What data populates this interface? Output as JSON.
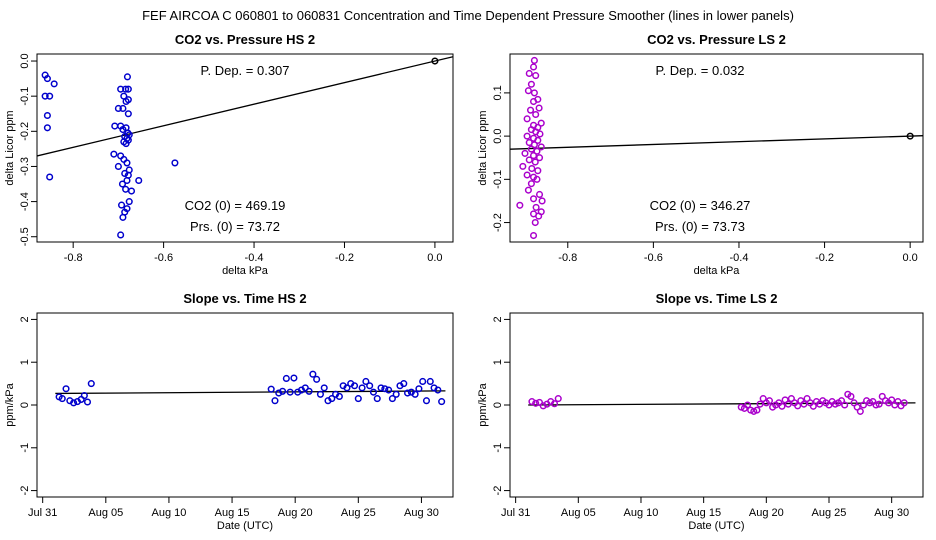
{
  "figure": {
    "title": "FEF   AIRCOA C   060801 to 060831   Concentration and Time Dependent Pressure Smoother (lines in lower panels)"
  },
  "chart_data": [
    {
      "id": "hs-co2-pressure",
      "type": "scatter",
      "title": "CO2 vs. Pressure HS 2",
      "xlabel": "delta kPa",
      "ylabel": "delta Licor ppm",
      "xlim": [
        -0.88,
        0.04
      ],
      "ylim": [
        -0.515,
        0.02
      ],
      "xticks": [
        -0.8,
        -0.6,
        -0.4,
        -0.2,
        0.0
      ],
      "xtick_labels": [
        "-0.8",
        "-0.6",
        "-0.4",
        "-0.2",
        "0.0"
      ],
      "yticks": [
        -0.5,
        -0.4,
        -0.3,
        -0.2,
        -0.1,
        0.0
      ],
      "ytick_labels": [
        "-0.5",
        "-0.4",
        "-0.3",
        "-0.2",
        "-0.1",
        "0.0"
      ],
      "point_color": "#0000cc",
      "annotations": {
        "pdep": "P. Dep. =  0.307",
        "co2": "CO2 (0) =  469.19",
        "prs": "Prs. (0) = 73.72"
      },
      "fit_line": {
        "x": [
          -0.88,
          0.04
        ],
        "y": [
          -0.2702,
          0.0123
        ]
      },
      "reference_point": {
        "x": 0.0,
        "y": 0.0
      },
      "points": [
        [
          -0.862,
          -0.04
        ],
        [
          -0.857,
          -0.05
        ],
        [
          -0.862,
          -0.1
        ],
        [
          -0.852,
          -0.1
        ],
        [
          -0.842,
          -0.065
        ],
        [
          -0.857,
          -0.155
        ],
        [
          -0.857,
          -0.19
        ],
        [
          -0.852,
          -0.33
        ],
        [
          -0.575,
          -0.29
        ],
        [
          -0.68,
          -0.045
        ],
        [
          -0.695,
          -0.08
        ],
        [
          -0.684,
          -0.08
        ],
        [
          -0.678,
          -0.08
        ],
        [
          -0.688,
          -0.1
        ],
        [
          -0.678,
          -0.11
        ],
        [
          -0.683,
          -0.115
        ],
        [
          -0.69,
          -0.135
        ],
        [
          -0.7,
          -0.135
        ],
        [
          -0.678,
          -0.15
        ],
        [
          -0.708,
          -0.185
        ],
        [
          -0.695,
          -0.185
        ],
        [
          -0.683,
          -0.19
        ],
        [
          -0.69,
          -0.195
        ],
        [
          -0.679,
          -0.205
        ],
        [
          -0.676,
          -0.21
        ],
        [
          -0.686,
          -0.215
        ],
        [
          -0.681,
          -0.22
        ],
        [
          -0.678,
          -0.225
        ],
        [
          -0.688,
          -0.23
        ],
        [
          -0.683,
          -0.235
        ],
        [
          -0.71,
          -0.265
        ],
        [
          -0.695,
          -0.27
        ],
        [
          -0.688,
          -0.28
        ],
        [
          -0.681,
          -0.29
        ],
        [
          -0.7,
          -0.3
        ],
        [
          -0.676,
          -0.31
        ],
        [
          -0.686,
          -0.32
        ],
        [
          -0.678,
          -0.325
        ],
        [
          -0.681,
          -0.34
        ],
        [
          -0.655,
          -0.34
        ],
        [
          -0.691,
          -0.35
        ],
        [
          -0.684,
          -0.365
        ],
        [
          -0.671,
          -0.37
        ],
        [
          -0.676,
          -0.4
        ],
        [
          -0.693,
          -0.41
        ],
        [
          -0.681,
          -0.42
        ],
        [
          -0.686,
          -0.43
        ],
        [
          -0.69,
          -0.445
        ],
        [
          -0.695,
          -0.495
        ]
      ]
    },
    {
      "id": "ls-co2-pressure",
      "type": "scatter",
      "title": "CO2 vs. Pressure LS 2",
      "xlabel": "delta kPa",
      "ylabel": "delta Licor ppm",
      "xlim": [
        -0.935,
        0.03
      ],
      "ylim": [
        -0.245,
        0.19
      ],
      "xticks": [
        -0.8,
        -0.6,
        -0.4,
        -0.2,
        0.0
      ],
      "xtick_labels": [
        "-0.8",
        "-0.6",
        "-0.4",
        "-0.2",
        "0.0"
      ],
      "yticks": [
        -0.2,
        -0.1,
        0.0,
        0.1
      ],
      "ytick_labels": [
        "-0.2",
        "-0.1",
        "0.0",
        "0.1"
      ],
      "point_color": "#aa00cc",
      "annotations": {
        "pdep": "P. Dep. =  0.032",
        "co2": "CO2 (0) =  346.27",
        "prs": "Prs. (0) = 73.73"
      },
      "fit_line": {
        "x": [
          -0.935,
          0.03
        ],
        "y": [
          -0.0302,
          0.001
        ]
      },
      "reference_point": {
        "x": 0.0,
        "y": 0.0
      },
      "points": [
        [
          -0.878,
          0.175
        ],
        [
          -0.88,
          0.16
        ],
        [
          -0.89,
          0.145
        ],
        [
          -0.875,
          0.14
        ],
        [
          -0.885,
          0.12
        ],
        [
          -0.892,
          0.105
        ],
        [
          -0.878,
          0.1
        ],
        [
          -0.87,
          0.085
        ],
        [
          -0.88,
          0.08
        ],
        [
          -0.867,
          0.065
        ],
        [
          -0.887,
          0.06
        ],
        [
          -0.875,
          0.05
        ],
        [
          -0.895,
          0.04
        ],
        [
          -0.862,
          0.03
        ],
        [
          -0.88,
          0.025
        ],
        [
          -0.87,
          0.02
        ],
        [
          -0.885,
          0.015
        ],
        [
          -0.875,
          0.01
        ],
        [
          -0.865,
          0.005
        ],
        [
          -0.895,
          0.0
        ],
        [
          -0.88,
          -0.005
        ],
        [
          -0.87,
          -0.01
        ],
        [
          -0.89,
          -0.015
        ],
        [
          -0.878,
          -0.02
        ],
        [
          -0.862,
          -0.025
        ],
        [
          -0.885,
          -0.03
        ],
        [
          -0.872,
          -0.035
        ],
        [
          -0.9,
          -0.04
        ],
        [
          -0.88,
          -0.045
        ],
        [
          -0.866,
          -0.05
        ],
        [
          -0.89,
          -0.055
        ],
        [
          -0.876,
          -0.06
        ],
        [
          -0.905,
          -0.07
        ],
        [
          -0.884,
          -0.075
        ],
        [
          -0.87,
          -0.08
        ],
        [
          -0.895,
          -0.09
        ],
        [
          -0.88,
          -0.095
        ],
        [
          -0.872,
          -0.1
        ],
        [
          -0.885,
          -0.11
        ],
        [
          -0.892,
          -0.125
        ],
        [
          -0.866,
          -0.135
        ],
        [
          -0.88,
          -0.145
        ],
        [
          -0.86,
          -0.15
        ],
        [
          -0.912,
          -0.16
        ],
        [
          -0.874,
          -0.165
        ],
        [
          -0.862,
          -0.175
        ],
        [
          -0.88,
          -0.18
        ],
        [
          -0.868,
          -0.185
        ],
        [
          -0.876,
          -0.2
        ],
        [
          -0.88,
          -0.23
        ]
      ]
    },
    {
      "id": "hs-slope-time",
      "type": "scatter",
      "title": "Slope vs. Time HS 2",
      "xlabel": "Date (UTC)",
      "ylabel": "ppm/kPa",
      "xlim": [
        -0.45,
        32.5
      ],
      "ylim": [
        -2.15,
        2.15
      ],
      "xticks": [
        0,
        5,
        10,
        15,
        20,
        25,
        30
      ],
      "xtick_labels": [
        "Jul 31",
        "Aug 05",
        "Aug 10",
        "Aug 15",
        "Aug 20",
        "Aug 25",
        "Aug 30"
      ],
      "yticks": [
        -2,
        -1,
        0,
        1,
        2
      ],
      "ytick_labels": [
        "-2",
        "-1",
        "0",
        "1",
        "2"
      ],
      "point_color": "#0000cc",
      "fit_line": {
        "x": [
          1.0,
          31.9
        ],
        "y": [
          0.27,
          0.33
        ]
      },
      "points": [
        [
          1.3,
          0.19
        ],
        [
          1.55,
          0.15
        ],
        [
          1.85,
          0.38
        ],
        [
          2.15,
          0.1
        ],
        [
          2.45,
          0.05
        ],
        [
          2.75,
          0.08
        ],
        [
          3.05,
          0.13
        ],
        [
          3.3,
          0.22
        ],
        [
          3.55,
          0.07
        ],
        [
          3.85,
          0.5
        ],
        [
          18.1,
          0.37
        ],
        [
          18.4,
          0.1
        ],
        [
          18.7,
          0.28
        ],
        [
          19.0,
          0.32
        ],
        [
          19.3,
          0.62
        ],
        [
          19.6,
          0.3
        ],
        [
          19.9,
          0.63
        ],
        [
          20.2,
          0.3
        ],
        [
          20.5,
          0.35
        ],
        [
          20.8,
          0.4
        ],
        [
          21.1,
          0.32
        ],
        [
          21.4,
          0.72
        ],
        [
          21.7,
          0.6
        ],
        [
          22.0,
          0.25
        ],
        [
          22.3,
          0.4
        ],
        [
          22.6,
          0.1
        ],
        [
          22.9,
          0.15
        ],
        [
          23.2,
          0.25
        ],
        [
          23.5,
          0.2
        ],
        [
          23.8,
          0.45
        ],
        [
          24.1,
          0.4
        ],
        [
          24.4,
          0.5
        ],
        [
          24.7,
          0.45
        ],
        [
          25.0,
          0.15
        ],
        [
          25.3,
          0.4
        ],
        [
          25.6,
          0.55
        ],
        [
          25.9,
          0.45
        ],
        [
          26.2,
          0.3
        ],
        [
          26.5,
          0.15
        ],
        [
          26.8,
          0.4
        ],
        [
          27.1,
          0.38
        ],
        [
          27.4,
          0.35
        ],
        [
          27.7,
          0.15
        ],
        [
          28.0,
          0.25
        ],
        [
          28.3,
          0.45
        ],
        [
          28.6,
          0.5
        ],
        [
          28.9,
          0.28
        ],
        [
          29.2,
          0.3
        ],
        [
          29.5,
          0.25
        ],
        [
          29.8,
          0.38
        ],
        [
          30.1,
          0.55
        ],
        [
          30.4,
          0.1
        ],
        [
          30.7,
          0.55
        ],
        [
          31.0,
          0.4
        ],
        [
          31.3,
          0.35
        ],
        [
          31.6,
          0.08
        ]
      ]
    },
    {
      "id": "ls-slope-time",
      "type": "scatter",
      "title": "Slope vs. Time LS 2",
      "xlabel": "Date (UTC)",
      "ylabel": "ppm/kPa",
      "xlim": [
        -0.45,
        32.5
      ],
      "ylim": [
        -2.15,
        2.15
      ],
      "xticks": [
        0,
        5,
        10,
        15,
        20,
        25,
        30
      ],
      "xtick_labels": [
        "Jul 31",
        "Aug 05",
        "Aug 10",
        "Aug 15",
        "Aug 20",
        "Aug 25",
        "Aug 30"
      ],
      "yticks": [
        -2,
        -1,
        0,
        1,
        2
      ],
      "ytick_labels": [
        "-2",
        "-1",
        "0",
        "1",
        "2"
      ],
      "point_color": "#aa00cc",
      "fit_line": {
        "x": [
          1.0,
          31.9
        ],
        "y": [
          0.0,
          0.05
        ]
      },
      "points": [
        [
          1.3,
          0.08
        ],
        [
          1.6,
          0.04
        ],
        [
          1.9,
          0.06
        ],
        [
          2.2,
          -0.02
        ],
        [
          2.5,
          0.02
        ],
        [
          2.8,
          0.08
        ],
        [
          3.1,
          0.03
        ],
        [
          3.4,
          0.15
        ],
        [
          18.0,
          -0.05
        ],
        [
          18.25,
          -0.08
        ],
        [
          18.5,
          0.0
        ],
        [
          18.75,
          -0.12
        ],
        [
          19.0,
          -0.15
        ],
        [
          19.25,
          -0.12
        ],
        [
          19.5,
          0.02
        ],
        [
          19.75,
          0.15
        ],
        [
          20.0,
          0.05
        ],
        [
          20.25,
          0.1
        ],
        [
          20.5,
          -0.05
        ],
        [
          20.75,
          0.0
        ],
        [
          21.0,
          0.05
        ],
        [
          21.25,
          -0.03
        ],
        [
          21.5,
          0.12
        ],
        [
          21.75,
          0.02
        ],
        [
          22.0,
          0.15
        ],
        [
          22.25,
          0.05
        ],
        [
          22.5,
          -0.02
        ],
        [
          22.75,
          0.1
        ],
        [
          23.0,
          0.02
        ],
        [
          23.25,
          0.15
        ],
        [
          23.5,
          0.05
        ],
        [
          23.75,
          -0.03
        ],
        [
          24.0,
          0.08
        ],
        [
          24.25,
          0.02
        ],
        [
          24.5,
          0.1
        ],
        [
          24.75,
          0.05
        ],
        [
          25.0,
          0.0
        ],
        [
          25.25,
          0.08
        ],
        [
          25.5,
          0.02
        ],
        [
          25.75,
          0.05
        ],
        [
          26.0,
          0.1
        ],
        [
          26.25,
          0.0
        ],
        [
          26.5,
          0.25
        ],
        [
          26.75,
          0.2
        ],
        [
          27.0,
          0.05
        ],
        [
          27.25,
          -0.05
        ],
        [
          27.5,
          -0.15
        ],
        [
          27.75,
          0.0
        ],
        [
          28.0,
          0.1
        ],
        [
          28.25,
          0.05
        ],
        [
          28.5,
          0.08
        ],
        [
          28.75,
          0.0
        ],
        [
          29.0,
          0.02
        ],
        [
          29.25,
          0.2
        ],
        [
          29.5,
          0.1
        ],
        [
          29.75,
          0.05
        ],
        [
          30.0,
          0.12
        ],
        [
          30.25,
          0.0
        ],
        [
          30.5,
          0.08
        ],
        [
          30.75,
          -0.02
        ],
        [
          31.0,
          0.05
        ]
      ]
    }
  ]
}
